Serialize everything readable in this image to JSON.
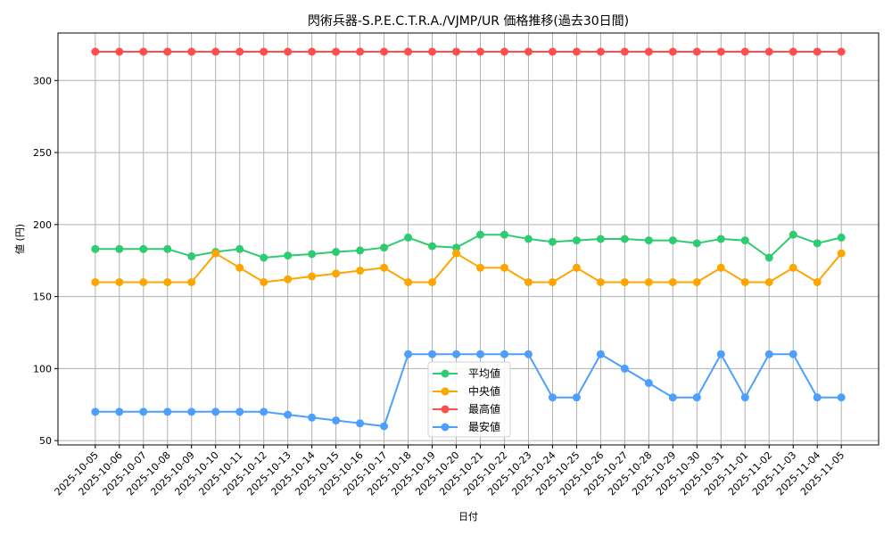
{
  "chart_data": {
    "type": "line",
    "title": "閃術兵器-S.P.E.C.T.R.A./VJMP/UR 価格推移(過去30日間)",
    "xlabel": "日付",
    "ylabel": "値 (円)",
    "ylim": [
      47,
      333
    ],
    "yticks": [
      50,
      100,
      150,
      200,
      250,
      300
    ],
    "grid": true,
    "legend_position": "lower center",
    "x": [
      "2025-10-05",
      "2025-10-06",
      "2025-10-07",
      "2025-10-08",
      "2025-10-09",
      "2025-10-10",
      "2025-10-11",
      "2025-10-12",
      "2025-10-13",
      "2025-10-14",
      "2025-10-15",
      "2025-10-16",
      "2025-10-17",
      "2025-10-18",
      "2025-10-19",
      "2025-10-20",
      "2025-10-21",
      "2025-10-22",
      "2025-10-23",
      "2025-10-24",
      "2025-10-25",
      "2025-10-26",
      "2025-10-27",
      "2025-10-28",
      "2025-10-29",
      "2025-10-30",
      "2025-10-31",
      "2025-11-01",
      "2025-11-02",
      "2025-11-03",
      "2025-11-04",
      "2025-11-05"
    ],
    "series": [
      {
        "name": "平均値",
        "color": "#2ecc71",
        "values": [
          183,
          183,
          183,
          183,
          178,
          181,
          183,
          177,
          178.5,
          179.5,
          181,
          182,
          184,
          191,
          185,
          184,
          193,
          193,
          190,
          188,
          189,
          190,
          190,
          189,
          189,
          187,
          190,
          189,
          177,
          193,
          187,
          191
        ]
      },
      {
        "name": "中央値",
        "color": "#ffa500",
        "values": [
          160,
          160,
          160,
          160,
          160,
          180,
          170,
          160,
          162,
          164,
          166,
          168,
          170,
          160,
          160,
          180,
          170,
          170,
          160,
          160,
          170,
          160,
          160,
          160,
          160,
          160,
          170,
          160,
          160,
          170,
          160,
          180
        ]
      },
      {
        "name": "最高値",
        "color": "#ff4d4d",
        "values": [
          320,
          320,
          320,
          320,
          320,
          320,
          320,
          320,
          320,
          320,
          320,
          320,
          320,
          320,
          320,
          320,
          320,
          320,
          320,
          320,
          320,
          320,
          320,
          320,
          320,
          320,
          320,
          320,
          320,
          320,
          320,
          320
        ]
      },
      {
        "name": "最安値",
        "color": "#4d9fff",
        "values": [
          70,
          70,
          70,
          70,
          70,
          70,
          70,
          70,
          68,
          66,
          64,
          62,
          60,
          110,
          110,
          110,
          110,
          110,
          110,
          80,
          80,
          110,
          100,
          90,
          80,
          80,
          110,
          80,
          110,
          110,
          80,
          80
        ]
      }
    ]
  }
}
